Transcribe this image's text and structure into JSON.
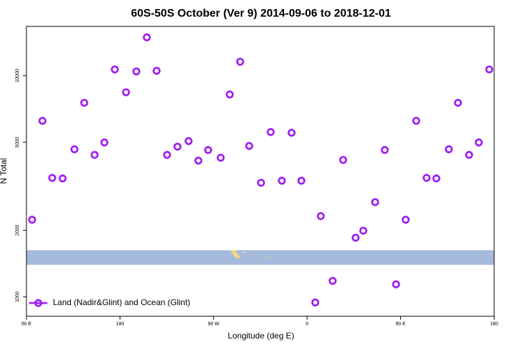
{
  "chart_data": {
    "type": "scatter",
    "title": "60S-50S October (Ver 9)   2014-09-06 to 2018-12-01",
    "x_label": "Longitude (deg E)",
    "y_label": "N Total",
    "xlim": [
      90,
      540
    ],
    "ylim": [
      817,
      16700
    ],
    "ylog": true,
    "grid": false,
    "legend": "bottom-left",
    "xticks": [
      {
        "value": 90,
        "label": "90 E"
      },
      {
        "value": 180,
        "label": "180"
      },
      {
        "value": 270,
        "label": "90 W"
      },
      {
        "value": 360,
        "label": "0"
      },
      {
        "value": 450,
        "label": "90 E"
      },
      {
        "value": 540,
        "label": "180"
      }
    ],
    "yticks": [
      1000,
      2000,
      5000,
      10000
    ],
    "series": [
      {
        "name": "Land (Nadir&Glint) and Ocean (Glint)",
        "color": "#a020f0",
        "x": [
          95.4,
          105.4,
          114.8,
          124.8,
          136.2,
          145.6,
          155.6,
          165.0,
          175.0,
          185.8,
          195.8,
          205.8,
          215.2,
          225.3,
          235.3,
          246.0,
          255.4,
          264.8,
          276.9,
          285.6,
          295.6,
          304.3,
          315.7,
          325.0,
          335.7,
          345.1,
          354.5,
          367.9,
          373.2,
          384.6,
          394.7,
          406.7,
          414.1,
          425.5,
          434.8,
          445.6,
          454.9,
          465.0,
          475.0,
          484.4,
          496.4,
          505.2,
          515.9,
          525.2,
          535.3
        ],
        "values": [
          2233,
          6250,
          3450,
          3430,
          4645,
          7540,
          4385,
          4990,
          10670,
          8410,
          10450,
          14900,
          10520,
          4385,
          4775,
          5060,
          4130,
          4610,
          4255,
          8220,
          11560,
          4810,
          3280,
          5560,
          3350,
          5520,
          3350,
          943,
          2318,
          1181,
          4160,
          1850,
          1991,
          2680,
          4615,
          1139,
          2233,
          6250,
          3450,
          3430,
          4645,
          7540,
          4385,
          4990,
          10670
        ]
      }
    ]
  }
}
